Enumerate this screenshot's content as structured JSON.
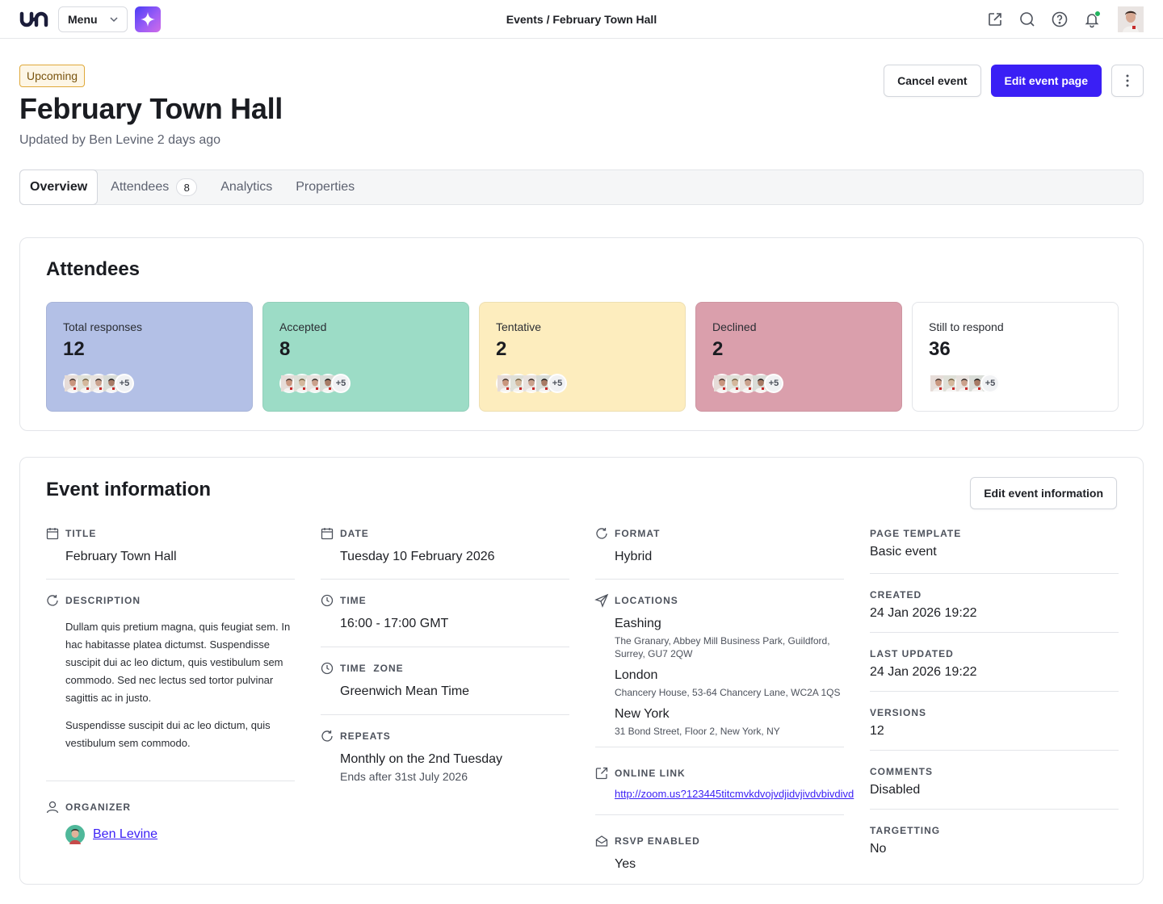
{
  "topbar": {
    "menu_label": "Menu",
    "breadcrumb": "Events / February Town Hall",
    "icons": [
      "external-link-icon",
      "search-icon",
      "help-icon",
      "bell-icon"
    ],
    "notification_color": "#22b35e"
  },
  "header": {
    "status": "Upcoming",
    "title": "February Town Hall",
    "updated": "Updated by Ben Levine 2 days ago",
    "cancel_label": "Cancel event",
    "edit_label": "Edit event page"
  },
  "tabs": [
    {
      "label": "Overview"
    },
    {
      "label": "Attendees",
      "count": "8"
    },
    {
      "label": "Analytics"
    },
    {
      "label": "Properties"
    }
  ],
  "attendees": {
    "title": "Attendees",
    "cards": [
      {
        "label": "Total responses",
        "value": "12",
        "more": "+5",
        "color": "#b3c0e6"
      },
      {
        "label": "Accepted",
        "value": "8",
        "more": "+5",
        "color": "#9cdcc6"
      },
      {
        "label": "Tentative",
        "value": "2",
        "more": "+5",
        "color": "#fdedbe"
      },
      {
        "label": "Declined",
        "value": "2",
        "more": "+5",
        "color": "#da9fac"
      },
      {
        "label": "Still to respond",
        "value": "36",
        "more": "+5",
        "color": "#ffffff"
      }
    ]
  },
  "info": {
    "title": "Event information",
    "edit_label": "Edit event information",
    "title_label": "TITLE",
    "title_value": "February Town Hall",
    "description_label": "DESCRIPTION",
    "description_p1": "Dullam quis pretium magna, quis feugiat sem. In hac habitasse platea dictumst. Suspendisse suscipit dui ac leo dictum, quis vestibulum sem commodo. Sed nec lectus sed tortor pulvinar sagittis ac in justo.",
    "description_p2": "Suspendisse suscipit dui ac leo dictum, quis vestibulum sem commodo.",
    "organizer_label": "ORGANIZER",
    "organizer_name": "Ben Levine",
    "date_label": "DATE",
    "date_value": "Tuesday 10 February 2026",
    "time_label": "TIME",
    "time_value": "16:00 - 17:00 GMT",
    "timezone_label": "TIME  ZONE",
    "timezone_value": "Greenwich Mean Time",
    "repeats_label": "REPEATS",
    "repeats_value": "Monthly on the 2nd Tuesday",
    "repeats_sub": "Ends after 31st July 2026",
    "format_label": "FORMAT",
    "format_value": "Hybrid",
    "locations_label": "LOCATIONS",
    "locations": [
      {
        "name": "Eashing",
        "address": "The Granary, Abbey Mill Business Park, Guildford, Surrey, GU7 2QW"
      },
      {
        "name": "London",
        "address": "Chancery House, 53-64 Chancery Lane, WC2A 1QS"
      },
      {
        "name": "New York",
        "address": "31 Bond Street, Floor 2, New York, NY"
      }
    ],
    "online_label": "ONLINE LINK",
    "online_value": "http://zoom.us?123445titcmvkdvojvdjidvjivdvbivdivd",
    "rsvp_label": "RSVP ENABLED",
    "rsvp_value": "Yes",
    "meta": [
      {
        "label": "PAGE TEMPLATE",
        "value": "Basic event"
      },
      {
        "label": "CREATED",
        "value": "24 Jan 2026 19:22"
      },
      {
        "label": "LAST UPDATED",
        "value": "24 Jan 2026 19:22"
      },
      {
        "label": "VERSIONS",
        "value": "12"
      },
      {
        "label": "COMMENTS",
        "value": "Disabled"
      },
      {
        "label": "TARGETTING",
        "value": "No"
      }
    ]
  },
  "colors": {
    "accent": "#3a1ff5",
    "badge_border": "#e0a93a"
  }
}
